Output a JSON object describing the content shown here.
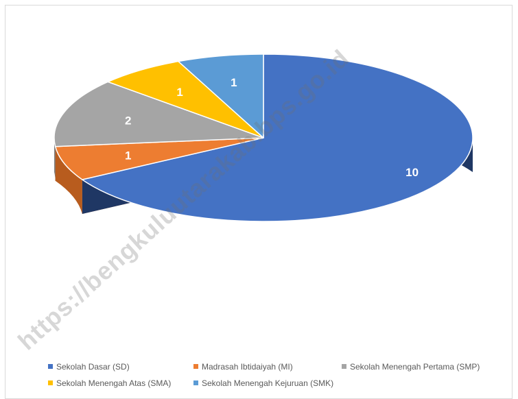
{
  "chart_data": {
    "type": "pie",
    "title": "",
    "categories": [
      "Sekolah Dasar (SD)",
      "Madrasah Ibtidaiyah (MI)",
      "Sekolah Menengah Pertama (SMP)",
      "Sekolah Menengah Atas (SMA)",
      "Sekolah Menengah Kejuruan (SMK)"
    ],
    "values": [
      10,
      1,
      2,
      1,
      1
    ],
    "colors": [
      "#4472C4",
      "#ED7D31",
      "#A5A5A5",
      "#FFC000",
      "#5B9BD5"
    ],
    "side_colors": [
      "#1F3764",
      "#B85C1E",
      "#7F7F7F",
      "#BF9000",
      "#2E6DA4"
    ],
    "style": "3d",
    "legend_position": "bottom"
  },
  "watermark": "https://bengkuluutarakab.bps.go.id"
}
